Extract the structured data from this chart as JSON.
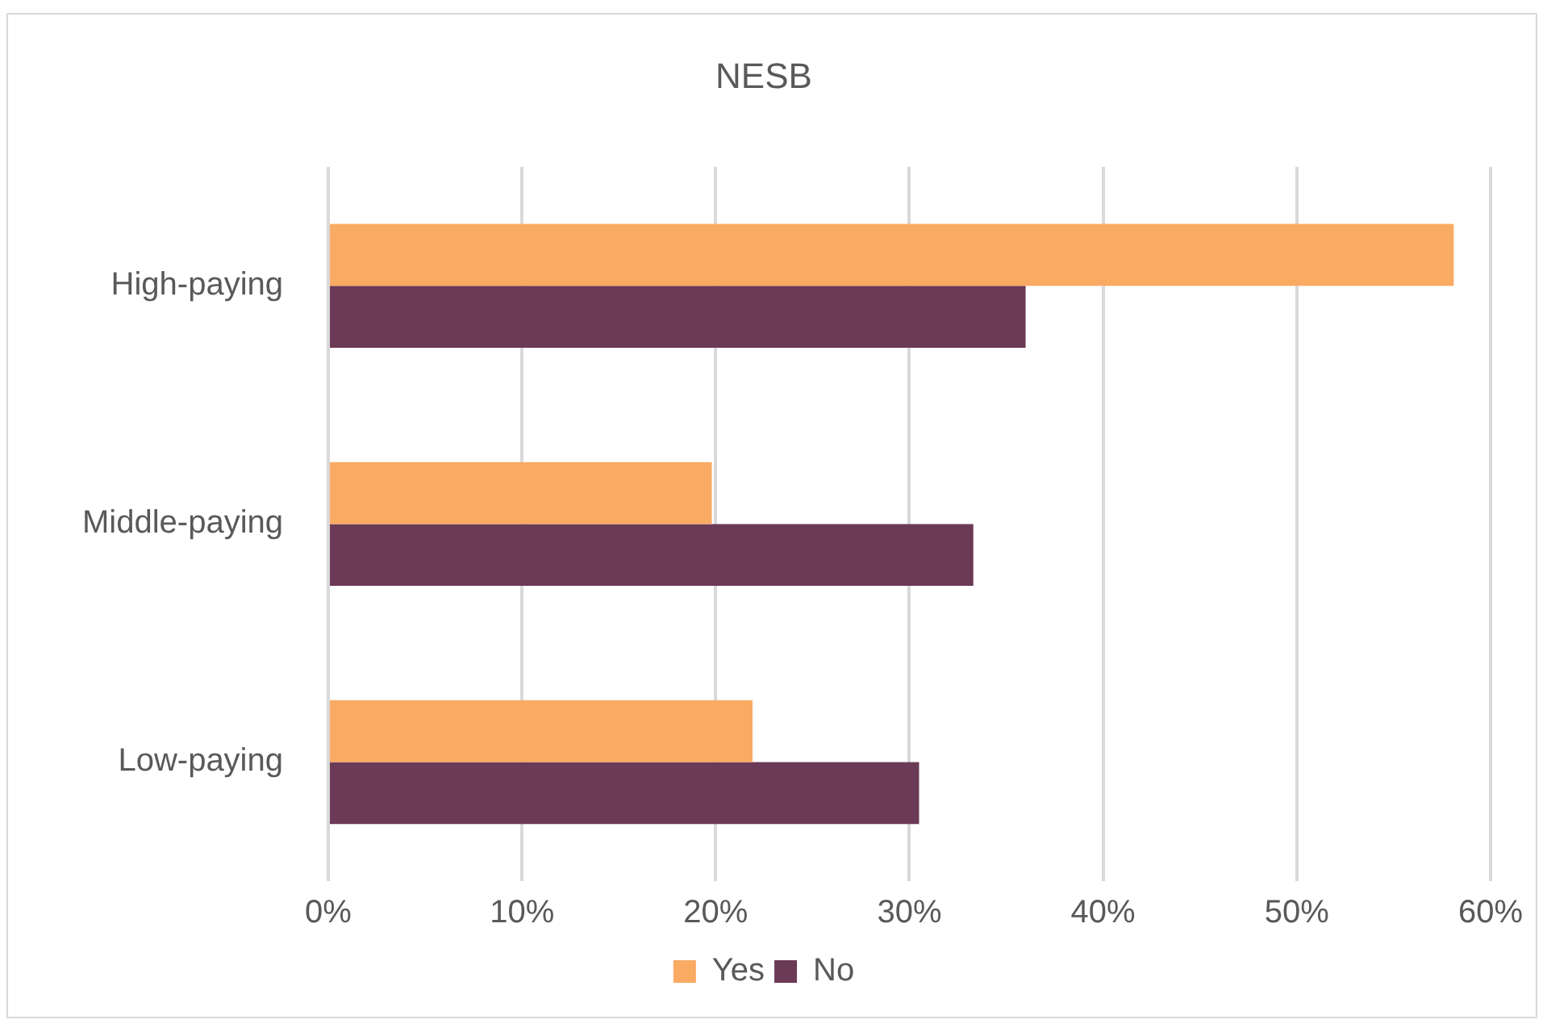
{
  "chart_data": {
    "type": "bar",
    "orientation": "horizontal",
    "title": "NESB",
    "categories": [
      "High-paying",
      "Middle-paying",
      "Low-paying"
    ],
    "series": [
      {
        "name": "Yes",
        "color": "#f9aa63",
        "values": [
          58.1,
          19.8,
          21.9
        ]
      },
      {
        "name": "No",
        "color": "#6b3a56",
        "values": [
          36,
          33.3,
          30.5
        ]
      }
    ],
    "xlim": [
      0,
      60
    ],
    "xticks": [
      {
        "value": 0,
        "label": "0%"
      },
      {
        "value": 10,
        "label": "10%"
      },
      {
        "value": 20,
        "label": "20%"
      },
      {
        "value": 30,
        "label": "30%"
      },
      {
        "value": 40,
        "label": "40%"
      },
      {
        "value": 50,
        "label": "50%"
      },
      {
        "value": 60,
        "label": "60%"
      }
    ],
    "grid": "x",
    "legend": "bottom"
  }
}
